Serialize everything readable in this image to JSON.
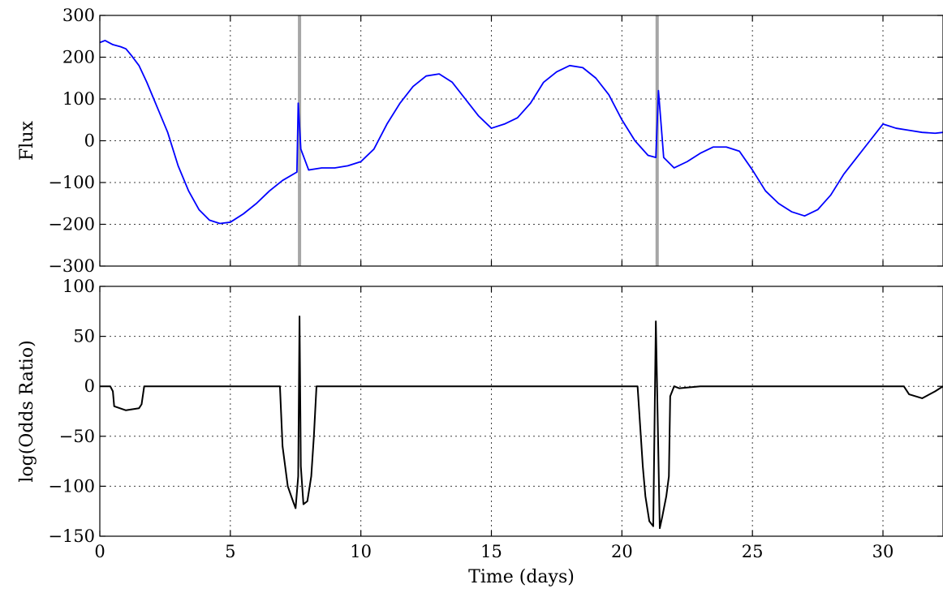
{
  "chart_data": [
    {
      "type": "line",
      "panel": "top",
      "title": "",
      "xlabel": "",
      "ylabel": "Flux",
      "xlim": [
        0,
        32.3
      ],
      "ylim": [
        -300,
        300
      ],
      "grid": true,
      "x_ticks": [
        "0",
        "5",
        "10",
        "15",
        "20",
        "25",
        "30"
      ],
      "y_ticks": [
        "300",
        "200",
        "100",
        "0",
        "−100",
        "−200",
        "−300"
      ],
      "vertical_markers": [
        7.65,
        21.35
      ],
      "colors": {
        "series": "#0000ff",
        "marker": "#a6a6a6"
      },
      "series": [
        {
          "color": "#0000ff",
          "x": [
            0,
            0.2,
            0.5,
            0.8,
            1.0,
            1.2,
            1.5,
            1.8,
            2.2,
            2.6,
            3.0,
            3.4,
            3.8,
            4.2,
            4.6,
            5.0,
            5.5,
            6.0,
            6.5,
            7.0,
            7.55,
            7.6,
            7.7,
            8.0,
            8.5,
            9.0,
            9.5,
            10.0,
            10.5,
            11.0,
            11.5,
            12.0,
            12.5,
            13.0,
            13.5,
            14.0,
            14.5,
            15.0,
            15.5,
            16.0,
            16.5,
            17.0,
            17.5,
            18.0,
            18.5,
            19.0,
            19.5,
            20.0,
            20.5,
            21.0,
            21.3,
            21.4,
            21.6,
            22.0,
            22.5,
            23.0,
            23.5,
            24.0,
            24.5,
            25.0,
            25.5,
            26.0,
            26.5,
            27.0,
            27.5,
            28.0,
            28.5,
            29.0,
            29.5,
            30.0,
            30.5,
            31.0,
            31.5,
            32.0,
            32.3
          ],
          "y": [
            235,
            240,
            230,
            225,
            220,
            205,
            180,
            140,
            80,
            20,
            -60,
            -120,
            -165,
            -190,
            -198,
            -195,
            -175,
            -150,
            -120,
            -95,
            -75,
            90,
            -20,
            -70,
            -65,
            -65,
            -60,
            -50,
            -20,
            40,
            90,
            130,
            155,
            160,
            140,
            100,
            60,
            30,
            40,
            55,
            90,
            140,
            165,
            180,
            175,
            150,
            110,
            50,
            0,
            -35,
            -40,
            120,
            -40,
            -65,
            -50,
            -30,
            -15,
            -15,
            -25,
            -70,
            -120,
            -150,
            -170,
            -180,
            -165,
            -130,
            -80,
            -40,
            0,
            40,
            30,
            25,
            20,
            18,
            20
          ]
        }
      ]
    },
    {
      "type": "line",
      "panel": "bottom",
      "title": "",
      "xlabel": "Time (days)",
      "ylabel": "log(Odds Ratio)",
      "xlim": [
        0,
        32.3
      ],
      "ylim": [
        -150,
        100
      ],
      "grid": true,
      "x_ticks": [
        "0",
        "5",
        "10",
        "15",
        "20",
        "25",
        "30"
      ],
      "y_ticks": [
        "100",
        "50",
        "0",
        "−50",
        "−100",
        "−150"
      ],
      "colors": {
        "series": "#000000"
      },
      "series": [
        {
          "color": "#000000",
          "x": [
            0,
            0.4,
            0.5,
            0.55,
            1.0,
            1.5,
            1.6,
            1.7,
            2.0,
            3.0,
            4.0,
            5.0,
            6.0,
            6.9,
            7.0,
            7.2,
            7.4,
            7.5,
            7.6,
            7.65,
            7.7,
            7.8,
            7.95,
            8.1,
            8.2,
            8.3,
            9.0,
            10.0,
            12.0,
            14.0,
            16.0,
            18.0,
            20.0,
            20.6,
            20.7,
            20.8,
            20.9,
            21.05,
            21.2,
            21.3,
            21.45,
            21.55,
            21.7,
            21.8,
            21.85,
            22.0,
            22.2,
            23.0,
            25.0,
            27.0,
            29.0,
            30.8,
            31.0,
            31.5,
            32.0,
            32.3
          ],
          "y": [
            0,
            0,
            -5,
            -20,
            -24,
            -22,
            -18,
            0,
            0,
            0,
            0,
            0,
            0,
            0,
            -60,
            -100,
            -115,
            -122,
            -90,
            70,
            -80,
            -118,
            -115,
            -90,
            -50,
            0,
            0,
            0,
            0,
            0,
            0,
            0,
            0,
            0,
            -40,
            -80,
            -110,
            -135,
            -140,
            65,
            -142,
            -130,
            -110,
            -90,
            -10,
            0,
            -2,
            0,
            0,
            0,
            0,
            0,
            -8,
            -12,
            -5,
            0
          ]
        }
      ]
    }
  ]
}
